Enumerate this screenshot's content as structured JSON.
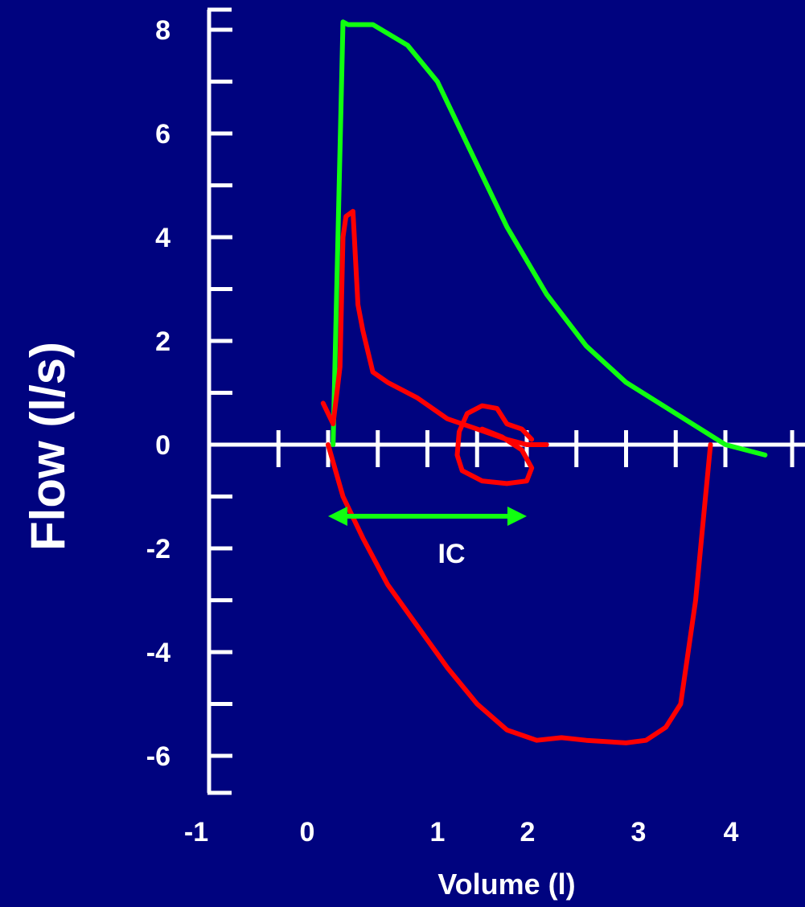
{
  "chart_data": {
    "type": "line",
    "xlabel": "Volume (l)",
    "ylabel": "Flow (l/s)",
    "x_ticks": [
      "-1",
      "0",
      "1",
      "2",
      "3",
      "4"
    ],
    "y_ticks": [
      "8",
      "6",
      "4",
      "2",
      "0",
      "-2",
      "-4",
      "-6"
    ],
    "xlim": [
      -1,
      4.3
    ],
    "ylim": [
      -6.8,
      8.2
    ],
    "grid": false,
    "legend": "none",
    "colors": {
      "background": "#00037f",
      "axes": "#ffffff",
      "maximal_loop": "#10ff10",
      "tidal_loop": "#ff0000",
      "ic_arrow": "#10ff10"
    },
    "series": [
      {
        "points": [
          [
            0.05,
            0.0
          ],
          [
            0.15,
            8.15
          ],
          [
            0.2,
            8.1
          ],
          [
            0.45,
            8.1
          ],
          [
            0.8,
            7.7
          ],
          [
            1.1,
            7.0
          ],
          [
            1.4,
            5.8
          ],
          [
            1.8,
            4.2
          ],
          [
            2.2,
            2.9
          ],
          [
            2.6,
            1.9
          ],
          [
            3.0,
            1.2
          ],
          [
            3.5,
            0.6
          ],
          [
            4.0,
            0.0
          ],
          [
            4.4,
            -0.2
          ]
        ]
      },
      {
        "points": [
          [
            -0.05,
            0.8
          ],
          [
            0.05,
            0.4
          ],
          [
            0.12,
            1.5
          ],
          [
            0.15,
            4.0
          ],
          [
            0.18,
            4.4
          ],
          [
            0.25,
            4.5
          ],
          [
            0.3,
            2.7
          ],
          [
            0.35,
            2.2
          ],
          [
            0.45,
            1.4
          ],
          [
            0.6,
            1.2
          ],
          [
            0.9,
            0.9
          ],
          [
            1.2,
            0.5
          ],
          [
            1.5,
            0.3
          ],
          [
            1.8,
            0.1
          ],
          [
            2.0,
            0.0
          ],
          [
            2.2,
            0.0
          ]
        ]
      },
      {
        "points": [
          [
            1.55,
            0.3
          ],
          [
            1.75,
            0.15
          ],
          [
            1.95,
            -0.1
          ],
          [
            2.05,
            -0.45
          ],
          [
            2.0,
            -0.7
          ],
          [
            1.8,
            -0.75
          ],
          [
            1.55,
            -0.7
          ],
          [
            1.35,
            -0.5
          ],
          [
            1.3,
            -0.2
          ],
          [
            1.32,
            0.25
          ],
          [
            1.4,
            0.6
          ],
          [
            1.55,
            0.75
          ],
          [
            1.7,
            0.7
          ],
          [
            1.8,
            0.4
          ],
          [
            1.95,
            0.3
          ],
          [
            2.05,
            0.1
          ]
        ]
      },
      {
        "points": [
          [
            0.0,
            0.0
          ],
          [
            0.15,
            -1.0
          ],
          [
            0.35,
            -1.8
          ],
          [
            0.6,
            -2.7
          ],
          [
            0.9,
            -3.5
          ],
          [
            1.2,
            -4.3
          ],
          [
            1.5,
            -5.0
          ],
          [
            1.8,
            -5.5
          ],
          [
            2.1,
            -5.7
          ],
          [
            2.35,
            -5.65
          ],
          [
            2.6,
            -5.7
          ],
          [
            3.0,
            -5.75
          ],
          [
            3.2,
            -5.7
          ],
          [
            3.4,
            -5.45
          ],
          [
            3.55,
            -5.0
          ],
          [
            3.7,
            -3.0
          ],
          [
            3.8,
            -1.0
          ],
          [
            3.85,
            0.0
          ]
        ]
      }
    ],
    "annotations": [
      {
        "type": "double-arrow",
        "from": [
          0.0,
          -2.0
        ],
        "to": [
          2.0,
          -2.0
        ],
        "label": "IC"
      }
    ]
  }
}
